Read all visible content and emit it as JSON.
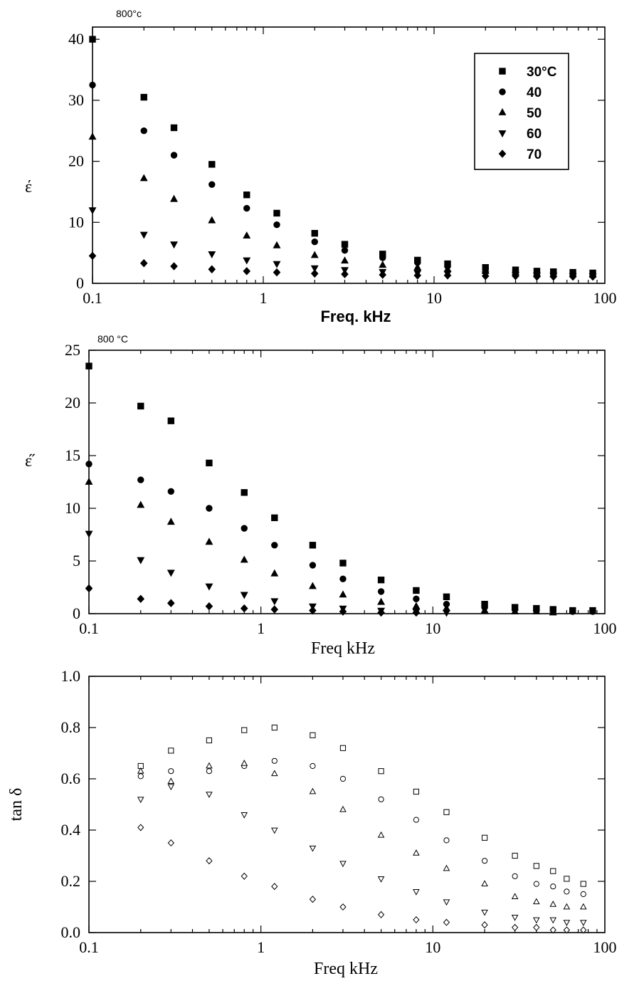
{
  "chart_data": [
    {
      "type": "scatter",
      "annotation": "800°c",
      "xlabel": "Freq. kHz",
      "ylabel": "έ",
      "xscale": "log",
      "xlim": [
        0.1,
        100
      ],
      "ylim": [
        0,
        42
      ],
      "x_ticks": [
        "0.1",
        "1",
        "10",
        "100"
      ],
      "y_ticks": [
        "0",
        "10",
        "20",
        "30",
        "40"
      ],
      "legend": {
        "placement": "top-right",
        "entries": [
          "30°C",
          "40",
          "50",
          "60",
          "70"
        ]
      },
      "series": [
        {
          "name": "30°C",
          "marker": "square",
          "x": [
            0.1,
            0.2,
            0.3,
            0.5,
            0.8,
            1.2,
            2,
            3,
            5,
            8,
            12,
            20,
            30,
            40,
            50,
            65,
            85
          ],
          "y": [
            40,
            30.5,
            25.5,
            19.5,
            14.5,
            11.5,
            8.2,
            6.4,
            4.8,
            3.8,
            3.2,
            2.6,
            2.2,
            2.0,
            1.9,
            1.8,
            1.7
          ]
        },
        {
          "name": "40",
          "marker": "circle",
          "x": [
            0.1,
            0.2,
            0.3,
            0.5,
            0.8,
            1.2,
            2,
            3,
            5,
            8,
            12,
            20,
            30,
            40,
            50,
            65,
            85
          ],
          "y": [
            32.5,
            25,
            21,
            16.2,
            12.3,
            9.6,
            6.8,
            5.4,
            4.2,
            3.4,
            2.8,
            2.3,
            2.0,
            1.8,
            1.7,
            1.6,
            1.6
          ]
        },
        {
          "name": "50",
          "marker": "triangle-up",
          "x": [
            0.1,
            0.2,
            0.3,
            0.5,
            0.8,
            1.2,
            2,
            3,
            5,
            8,
            12,
            20,
            30,
            40,
            50,
            65,
            85
          ],
          "y": [
            24,
            17.2,
            13.8,
            10.3,
            7.8,
            6.2,
            4.6,
            3.7,
            3.0,
            2.6,
            2.3,
            2.0,
            1.8,
            1.6,
            1.5,
            1.5,
            1.4
          ]
        },
        {
          "name": "60",
          "marker": "triangle-down",
          "x": [
            0.1,
            0.2,
            0.3,
            0.5,
            0.8,
            1.2,
            2,
            3,
            5,
            8,
            12,
            20,
            30,
            40,
            50,
            65,
            85
          ],
          "y": [
            12,
            8,
            6.4,
            4.8,
            3.8,
            3.2,
            2.5,
            2.2,
            1.9,
            1.7,
            1.6,
            1.5,
            1.4,
            1.3,
            1.3,
            1.2,
            1.2
          ]
        },
        {
          "name": "70",
          "marker": "diamond",
          "x": [
            0.1,
            0.2,
            0.3,
            0.5,
            0.8,
            1.2,
            2,
            3,
            5,
            8,
            12,
            20,
            30,
            40,
            50,
            65,
            85
          ],
          "y": [
            4.5,
            3.3,
            2.8,
            2.3,
            2.0,
            1.8,
            1.6,
            1.5,
            1.4,
            1.3,
            1.3,
            1.2,
            1.2,
            1.1,
            1.1,
            1.1,
            1.1
          ]
        }
      ]
    },
    {
      "type": "scatter",
      "annotation": "800 °C",
      "xlabel": "Freq kHz",
      "ylabel": "ε̋",
      "xscale": "log",
      "xlim": [
        0.1,
        100
      ],
      "ylim": [
        0,
        25
      ],
      "x_ticks": [
        "0.1",
        "1",
        "10",
        "100"
      ],
      "y_ticks": [
        "0",
        "5",
        "10",
        "15",
        "20",
        "25"
      ],
      "series": [
        {
          "name": "",
          "marker": "square",
          "x": [
            0.1,
            0.2,
            0.3,
            0.5,
            0.8,
            1.2,
            2,
            3,
            5,
            8,
            12,
            20,
            30,
            40,
            50,
            65,
            85
          ],
          "y": [
            23.5,
            19.7,
            18.3,
            14.3,
            11.5,
            9.1,
            6.5,
            4.8,
            3.2,
            2.2,
            1.6,
            0.9,
            0.6,
            0.5,
            0.4,
            0.3,
            0.3
          ]
        },
        {
          "name": "",
          "marker": "circle",
          "x": [
            0.1,
            0.2,
            0.3,
            0.5,
            0.8,
            1.2,
            2,
            3,
            5,
            8,
            12,
            20,
            30,
            40,
            50,
            65,
            85
          ],
          "y": [
            14.2,
            12.7,
            11.6,
            10,
            8.1,
            6.5,
            4.6,
            3.3,
            2.1,
            1.4,
            0.9,
            0.6,
            0.4,
            0.3,
            0.3,
            0.2,
            0.2
          ]
        },
        {
          "name": "",
          "marker": "triangle-up",
          "x": [
            0.1,
            0.2,
            0.3,
            0.5,
            0.8,
            1.2,
            2,
            3,
            5,
            8,
            12,
            20,
            30,
            40,
            50
          ],
          "y": [
            12.5,
            10.3,
            8.7,
            6.8,
            5.1,
            3.8,
            2.6,
            1.8,
            1.1,
            0.7,
            0.5,
            0.3,
            0.2,
            0.2,
            0.1
          ]
        },
        {
          "name": "",
          "marker": "triangle-down",
          "x": [
            0.1,
            0.2,
            0.3,
            0.5,
            0.8,
            1.2,
            2,
            3,
            5,
            8,
            12
          ],
          "y": [
            7.6,
            5.1,
            3.9,
            2.6,
            1.8,
            1.2,
            0.7,
            0.5,
            0.3,
            0.2,
            0.1
          ]
        },
        {
          "name": "",
          "marker": "diamond",
          "x": [
            0.1,
            0.2,
            0.3,
            0.5,
            0.8,
            1.2,
            2,
            3,
            5,
            8
          ],
          "y": [
            2.4,
            1.4,
            1.0,
            0.7,
            0.5,
            0.4,
            0.3,
            0.2,
            0.1,
            0.1
          ]
        }
      ]
    },
    {
      "type": "scatter",
      "annotation": "",
      "xlabel": "Freq kHz",
      "ylabel": "tan δ",
      "xscale": "log",
      "xlim": [
        0.1,
        100
      ],
      "ylim": [
        0,
        1.0
      ],
      "x_ticks": [
        "0.1",
        "1",
        "10",
        "100"
      ],
      "y_ticks": [
        "0.0",
        "0.2",
        "0.4",
        "0.6",
        "0.8",
        "1.0"
      ],
      "series": [
        {
          "name": "",
          "marker": "square",
          "x": [
            0.2,
            0.3,
            0.5,
            0.8,
            1.2,
            2,
            3,
            5,
            8,
            12,
            20,
            30,
            40,
            50,
            60,
            75
          ],
          "y": [
            0.65,
            0.71,
            0.75,
            0.79,
            0.8,
            0.77,
            0.72,
            0.63,
            0.55,
            0.47,
            0.37,
            0.3,
            0.26,
            0.24,
            0.21,
            0.19
          ]
        },
        {
          "name": "",
          "marker": "circle",
          "x": [
            0.2,
            0.3,
            0.5,
            0.8,
            1.2,
            2,
            3,
            5,
            8,
            12,
            20,
            30,
            40,
            50,
            60,
            75
          ],
          "y": [
            0.61,
            0.63,
            0.63,
            0.65,
            0.67,
            0.65,
            0.6,
            0.52,
            0.44,
            0.36,
            0.28,
            0.22,
            0.19,
            0.18,
            0.16,
            0.15
          ]
        },
        {
          "name": "",
          "marker": "triangle-up",
          "x": [
            0.2,
            0.3,
            0.5,
            0.8,
            1.2,
            2,
            3,
            5,
            8,
            12,
            20,
            30,
            40,
            50,
            60,
            75
          ],
          "y": [
            0.63,
            0.59,
            0.65,
            0.66,
            0.62,
            0.55,
            0.48,
            0.38,
            0.31,
            0.25,
            0.19,
            0.14,
            0.12,
            0.11,
            0.1,
            0.1
          ]
        },
        {
          "name": "",
          "marker": "triangle-down",
          "x": [
            0.2,
            0.3,
            0.5,
            0.8,
            1.2,
            2,
            3,
            5,
            8,
            12,
            20,
            30,
            40,
            50,
            60,
            75
          ],
          "y": [
            0.52,
            0.57,
            0.54,
            0.46,
            0.4,
            0.33,
            0.27,
            0.21,
            0.16,
            0.12,
            0.08,
            0.06,
            0.05,
            0.05,
            0.04,
            0.04
          ]
        },
        {
          "name": "",
          "marker": "diamond",
          "x": [
            0.2,
            0.3,
            0.5,
            0.8,
            1.2,
            2,
            3,
            5,
            8,
            12,
            20,
            30,
            40,
            50,
            60,
            75
          ],
          "y": [
            0.41,
            0.35,
            0.28,
            0.22,
            0.18,
            0.13,
            0.1,
            0.07,
            0.05,
            0.04,
            0.03,
            0.02,
            0.02,
            0.01,
            0.01,
            0.01
          ]
        }
      ]
    }
  ]
}
